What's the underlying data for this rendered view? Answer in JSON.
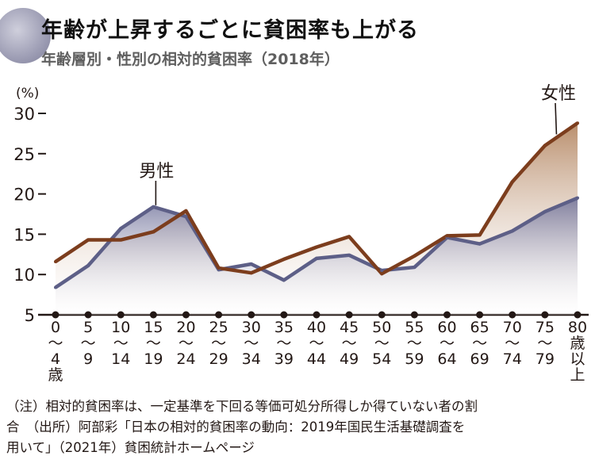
{
  "title": "年齢が上昇するごとに貧困率も上がる",
  "subtitle": "年齢層別・性別の相対的貧困率（2018年）",
  "colors": {
    "male": "#5d5f87",
    "female": "#7c3d1d",
    "axis": "#231815",
    "male_fill_top": "#8d8fb4",
    "female_fill_top": "#c9a88e"
  },
  "chart_data": {
    "type": "line",
    "title": "年齢層別・性別の相対的貧困率（2018年）",
    "ylabel": "(%)",
    "xlabel": "",
    "ylim": [
      5,
      30
    ],
    "yticks": [
      "5",
      "10",
      "15",
      "20",
      "25",
      "30"
    ],
    "grid": false,
    "categories": [
      [
        "0",
        "〜",
        "4",
        "歳"
      ],
      [
        "5",
        "〜",
        "9"
      ],
      [
        "10",
        "〜",
        "14"
      ],
      [
        "15",
        "〜",
        "19"
      ],
      [
        "20",
        "〜",
        "24"
      ],
      [
        "25",
        "〜",
        "29"
      ],
      [
        "30",
        "〜",
        "34"
      ],
      [
        "35",
        "〜",
        "39"
      ],
      [
        "40",
        "〜",
        "44"
      ],
      [
        "45",
        "〜",
        "49"
      ],
      [
        "50",
        "〜",
        "54"
      ],
      [
        "55",
        "〜",
        "59"
      ],
      [
        "60",
        "〜",
        "64"
      ],
      [
        "65",
        "〜",
        "69"
      ],
      [
        "70",
        "〜",
        "74"
      ],
      [
        "75",
        "〜",
        "79"
      ],
      [
        "80",
        "歳",
        "以",
        "上"
      ]
    ],
    "series": [
      {
        "name": "男性",
        "values": [
          8.4,
          11.1,
          15.7,
          18.4,
          17.2,
          10.6,
          11.3,
          9.3,
          12.0,
          12.4,
          10.5,
          10.9,
          14.6,
          13.8,
          15.4,
          17.8,
          19.5
        ]
      },
      {
        "name": "女性",
        "values": [
          11.6,
          14.3,
          14.3,
          15.3,
          17.9,
          10.8,
          10.2,
          11.9,
          13.4,
          14.7,
          10.1,
          12.3,
          14.8,
          14.9,
          21.5,
          26.0,
          28.8
        ]
      }
    ]
  },
  "notes": {
    "line1": "（注）相対的貧困率は、一定基準を下回る等価可処分所得しか得ていない者の割",
    "line2_a": "合",
    "line2_b": "（出所）阿部彩「日本の相対的貧困率の動向：2019年国民生活基礎調査を",
    "line3": "用いて」（2021年）貧困統計ホームページ"
  }
}
